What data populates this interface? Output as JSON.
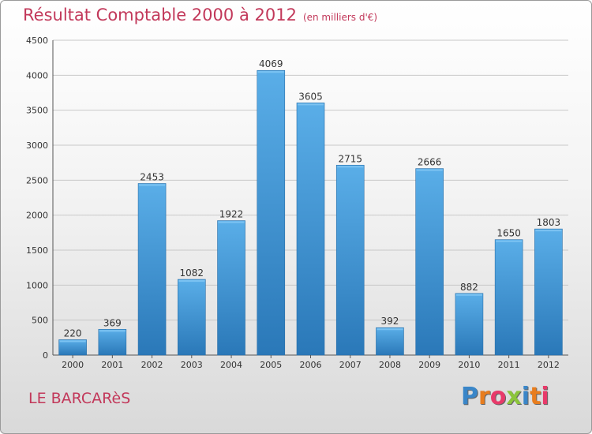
{
  "header": {
    "title": "Résultat Comptable 2000 à 2012",
    "subtitle": "(en milliers d'€)"
  },
  "footer": {
    "commune": "LE BARCARèS",
    "logo_text": "Proxiti"
  },
  "colors": {
    "title": "#c2385a",
    "bar_top": "#5aaee8",
    "bar_bottom": "#2a78b8",
    "grid": "#c8c8c8",
    "logo": [
      "#3a86c8",
      "#e87d1e",
      "#e83a6a",
      "#8bc43a",
      "#3a86c8",
      "#e87d1e",
      "#e83a6a"
    ]
  },
  "chart_data": {
    "type": "bar",
    "title": "Résultat Comptable 2000 à 2012",
    "subtitle": "(en milliers d'€)",
    "xlabel": "",
    "ylabel": "",
    "categories": [
      "2000",
      "2001",
      "2002",
      "2003",
      "2004",
      "2005",
      "2006",
      "2007",
      "2008",
      "2009",
      "2010",
      "2011",
      "2012"
    ],
    "values": [
      220,
      369,
      2453,
      1082,
      1922,
      4069,
      3605,
      2715,
      392,
      2666,
      882,
      1650,
      1803
    ],
    "ylim": [
      0,
      4500
    ],
    "yticks": [
      0,
      500,
      1000,
      1500,
      2000,
      2500,
      3000,
      3500,
      4000,
      4500
    ],
    "grid": true,
    "legend": "none"
  }
}
